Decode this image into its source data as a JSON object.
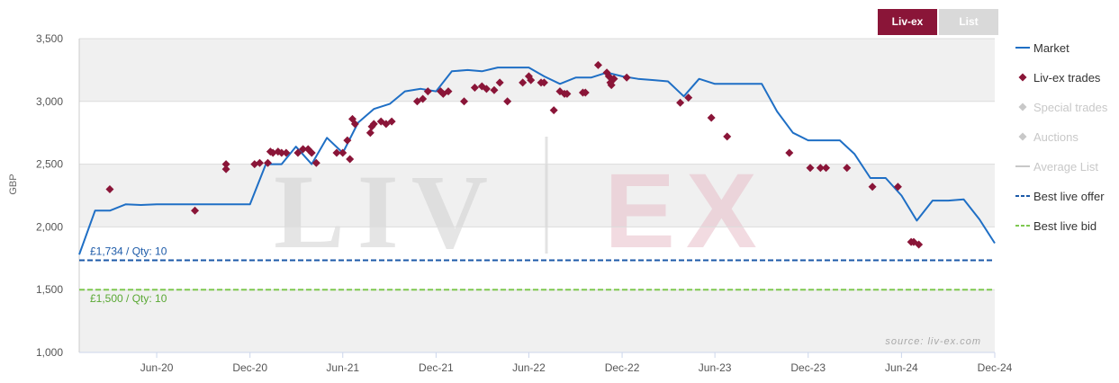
{
  "toggles": {
    "livex_label": "Liv-ex",
    "list_label": "List"
  },
  "colors": {
    "market": "#1f6fc5",
    "trades": "#8a1538",
    "inactive": "#c8c8c8",
    "offer": "#1c5aa8",
    "bid": "#7ec850",
    "band": "#f0f0f0"
  },
  "source_note": "source: liv-ex.com",
  "watermark": {
    "left": "LIV",
    "right": "EX"
  },
  "chart_data": {
    "type": "line",
    "ylabel": "GBP",
    "ylim": [
      1000,
      3500
    ],
    "xlim": [
      "2020-01-01",
      "2024-12-01"
    ],
    "yticks": [
      {
        "value": 1000,
        "label": "1,000"
      },
      {
        "value": 1500,
        "label": "1,500"
      },
      {
        "value": 2000,
        "label": "2,000"
      },
      {
        "value": 2500,
        "label": "2,500"
      },
      {
        "value": 3000,
        "label": "3,000"
      },
      {
        "value": 3500,
        "label": "3,500"
      }
    ],
    "xticks": [
      {
        "date": "2020-06-01",
        "label": "Jun-20"
      },
      {
        "date": "2020-12-01",
        "label": "Dec-20"
      },
      {
        "date": "2021-06-01",
        "label": "Jun-21"
      },
      {
        "date": "2021-12-01",
        "label": "Dec-21"
      },
      {
        "date": "2022-06-01",
        "label": "Jun-22"
      },
      {
        "date": "2022-12-01",
        "label": "Dec-22"
      },
      {
        "date": "2023-06-01",
        "label": "Jun-23"
      },
      {
        "date": "2023-12-01",
        "label": "Dec-23"
      },
      {
        "date": "2024-06-01",
        "label": "Jun-24"
      },
      {
        "date": "2024-12-01",
        "label": "Dec-24"
      }
    ],
    "legend": [
      {
        "name": "Market",
        "marker": "line",
        "active": true
      },
      {
        "name": "Liv-ex trades",
        "marker": "diamond",
        "active": true
      },
      {
        "name": "Special trades",
        "marker": "diamond",
        "active": false
      },
      {
        "name": "Auctions",
        "marker": "diamond",
        "active": false
      },
      {
        "name": "Average List",
        "marker": "line",
        "active": false
      },
      {
        "name": "Best live offer",
        "marker": "dash-blue",
        "active": true
      },
      {
        "name": "Best live bid",
        "marker": "dash-green",
        "active": true
      }
    ],
    "best_live_offer": {
      "value": 1734,
      "label": "£1,734 / Qty: 10"
    },
    "best_live_bid": {
      "value": 1500,
      "label": "£1,500 / Qty: 10"
    },
    "market": [
      {
        "x": "2020-01-01",
        "y": 1780
      },
      {
        "x": "2020-02-01",
        "y": 2130
      },
      {
        "x": "2020-03-01",
        "y": 2130
      },
      {
        "x": "2020-04-01",
        "y": 2180
      },
      {
        "x": "2020-05-01",
        "y": 2175
      },
      {
        "x": "2020-06-01",
        "y": 2180
      },
      {
        "x": "2020-07-01",
        "y": 2180
      },
      {
        "x": "2020-08-01",
        "y": 2180
      },
      {
        "x": "2020-09-01",
        "y": 2180
      },
      {
        "x": "2020-10-01",
        "y": 2180
      },
      {
        "x": "2020-11-01",
        "y": 2180
      },
      {
        "x": "2020-12-01",
        "y": 2180
      },
      {
        "x": "2021-01-01",
        "y": 2500
      },
      {
        "x": "2021-02-01",
        "y": 2500
      },
      {
        "x": "2021-03-01",
        "y": 2640
      },
      {
        "x": "2021-04-01",
        "y": 2500
      },
      {
        "x": "2021-05-01",
        "y": 2710
      },
      {
        "x": "2021-06-01",
        "y": 2590
      },
      {
        "x": "2021-07-01",
        "y": 2830
      },
      {
        "x": "2021-08-01",
        "y": 2940
      },
      {
        "x": "2021-09-01",
        "y": 2980
      },
      {
        "x": "2021-10-01",
        "y": 3080
      },
      {
        "x": "2021-11-01",
        "y": 3100
      },
      {
        "x": "2021-12-01",
        "y": 3080
      },
      {
        "x": "2022-01-01",
        "y": 3240
      },
      {
        "x": "2022-02-01",
        "y": 3250
      },
      {
        "x": "2022-03-01",
        "y": 3240
      },
      {
        "x": "2022-04-01",
        "y": 3270
      },
      {
        "x": "2022-05-01",
        "y": 3270
      },
      {
        "x": "2022-06-01",
        "y": 3270
      },
      {
        "x": "2022-07-01",
        "y": 3200
      },
      {
        "x": "2022-08-01",
        "y": 3140
      },
      {
        "x": "2022-09-01",
        "y": 3190
      },
      {
        "x": "2022-10-01",
        "y": 3190
      },
      {
        "x": "2022-11-01",
        "y": 3230
      },
      {
        "x": "2022-12-01",
        "y": 3200
      },
      {
        "x": "2023-01-01",
        "y": 3180
      },
      {
        "x": "2023-02-01",
        "y": 3170
      },
      {
        "x": "2023-03-01",
        "y": 3160
      },
      {
        "x": "2023-04-01",
        "y": 3040
      },
      {
        "x": "2023-05-01",
        "y": 3180
      },
      {
        "x": "2023-06-01",
        "y": 3140
      },
      {
        "x": "2023-07-01",
        "y": 3140
      },
      {
        "x": "2023-08-01",
        "y": 3140
      },
      {
        "x": "2023-09-01",
        "y": 3140
      },
      {
        "x": "2023-10-01",
        "y": 2920
      },
      {
        "x": "2023-11-01",
        "y": 2750
      },
      {
        "x": "2023-12-01",
        "y": 2690
      },
      {
        "x": "2024-01-01",
        "y": 2690
      },
      {
        "x": "2024-02-01",
        "y": 2690
      },
      {
        "x": "2024-03-01",
        "y": 2580
      },
      {
        "x": "2024-04-01",
        "y": 2390
      },
      {
        "x": "2024-05-01",
        "y": 2390
      },
      {
        "x": "2024-06-01",
        "y": 2250
      },
      {
        "x": "2024-07-01",
        "y": 2050
      },
      {
        "x": "2024-08-01",
        "y": 2210
      },
      {
        "x": "2024-09-01",
        "y": 2210
      },
      {
        "x": "2024-10-01",
        "y": 2220
      },
      {
        "x": "2024-11-01",
        "y": 2060
      },
      {
        "x": "2024-12-01",
        "y": 1870
      }
    ],
    "trades": [
      {
        "x": "2020-03-01",
        "y": 2300
      },
      {
        "x": "2020-08-15",
        "y": 2130
      },
      {
        "x": "2020-10-15",
        "y": 2500
      },
      {
        "x": "2020-10-15",
        "y": 2460
      },
      {
        "x": "2020-12-10",
        "y": 2500
      },
      {
        "x": "2020-12-20",
        "y": 2510
      },
      {
        "x": "2021-01-05",
        "y": 2510
      },
      {
        "x": "2021-01-10",
        "y": 2600
      },
      {
        "x": "2021-01-15",
        "y": 2590
      },
      {
        "x": "2021-01-25",
        "y": 2600
      },
      {
        "x": "2021-02-01",
        "y": 2590
      },
      {
        "x": "2021-02-10",
        "y": 2590
      },
      {
        "x": "2021-03-05",
        "y": 2590
      },
      {
        "x": "2021-03-15",
        "y": 2620
      },
      {
        "x": "2021-03-25",
        "y": 2620
      },
      {
        "x": "2021-04-01",
        "y": 2590
      },
      {
        "x": "2021-04-10",
        "y": 2510
      },
      {
        "x": "2021-05-20",
        "y": 2590
      },
      {
        "x": "2021-06-01",
        "y": 2590
      },
      {
        "x": "2021-06-10",
        "y": 2690
      },
      {
        "x": "2021-06-15",
        "y": 2540
      },
      {
        "x": "2021-06-20",
        "y": 2860
      },
      {
        "x": "2021-06-25",
        "y": 2820
      },
      {
        "x": "2021-07-25",
        "y": 2750
      },
      {
        "x": "2021-07-28",
        "y": 2800
      },
      {
        "x": "2021-08-01",
        "y": 2820
      },
      {
        "x": "2021-08-15",
        "y": 2840
      },
      {
        "x": "2021-08-25",
        "y": 2820
      },
      {
        "x": "2021-09-05",
        "y": 2840
      },
      {
        "x": "2021-10-25",
        "y": 3000
      },
      {
        "x": "2021-11-05",
        "y": 3020
      },
      {
        "x": "2021-11-15",
        "y": 3080
      },
      {
        "x": "2021-12-10",
        "y": 3080
      },
      {
        "x": "2021-12-15",
        "y": 3060
      },
      {
        "x": "2021-12-25",
        "y": 3080
      },
      {
        "x": "2022-01-25",
        "y": 3000
      },
      {
        "x": "2022-02-15",
        "y": 3110
      },
      {
        "x": "2022-03-01",
        "y": 3120
      },
      {
        "x": "2022-03-10",
        "y": 3100
      },
      {
        "x": "2022-03-25",
        "y": 3090
      },
      {
        "x": "2022-04-05",
        "y": 3150
      },
      {
        "x": "2022-04-20",
        "y": 3000
      },
      {
        "x": "2022-05-20",
        "y": 3150
      },
      {
        "x": "2022-06-01",
        "y": 3200
      },
      {
        "x": "2022-06-05",
        "y": 3170
      },
      {
        "x": "2022-06-25",
        "y": 3150
      },
      {
        "x": "2022-07-01",
        "y": 3150
      },
      {
        "x": "2022-07-20",
        "y": 2930
      },
      {
        "x": "2022-08-01",
        "y": 3080
      },
      {
        "x": "2022-08-10",
        "y": 3060
      },
      {
        "x": "2022-08-15",
        "y": 3060
      },
      {
        "x": "2022-09-15",
        "y": 3070
      },
      {
        "x": "2022-09-20",
        "y": 3070
      },
      {
        "x": "2022-10-15",
        "y": 3290
      },
      {
        "x": "2022-11-01",
        "y": 3230
      },
      {
        "x": "2022-11-05",
        "y": 3200
      },
      {
        "x": "2022-11-08",
        "y": 3150
      },
      {
        "x": "2022-11-10",
        "y": 3130
      },
      {
        "x": "2022-11-15",
        "y": 3180
      },
      {
        "x": "2022-12-10",
        "y": 3190
      },
      {
        "x": "2023-03-25",
        "y": 2990
      },
      {
        "x": "2023-04-10",
        "y": 3030
      },
      {
        "x": "2023-05-25",
        "y": 2870
      },
      {
        "x": "2023-06-25",
        "y": 2720
      },
      {
        "x": "2023-10-25",
        "y": 2590
      },
      {
        "x": "2023-12-05",
        "y": 2470
      },
      {
        "x": "2023-12-25",
        "y": 2470
      },
      {
        "x": "2024-01-05",
        "y": 2470
      },
      {
        "x": "2024-02-15",
        "y": 2470
      },
      {
        "x": "2024-04-05",
        "y": 2320
      },
      {
        "x": "2024-05-25",
        "y": 2320
      },
      {
        "x": "2024-06-20",
        "y": 1880
      },
      {
        "x": "2024-06-25",
        "y": 1880
      },
      {
        "x": "2024-07-05",
        "y": 1860
      }
    ]
  }
}
